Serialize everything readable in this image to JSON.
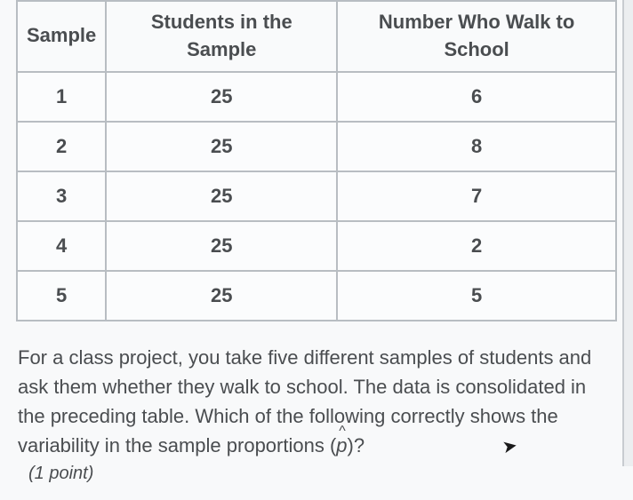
{
  "table": {
    "columns": [
      "Sample",
      "Students in the Sample",
      "Number Who Walk to School"
    ],
    "rows": [
      [
        "1",
        "25",
        "6"
      ],
      [
        "2",
        "25",
        "8"
      ],
      [
        "3",
        "25",
        "7"
      ],
      [
        "4",
        "25",
        "2"
      ],
      [
        "5",
        "25",
        "5"
      ]
    ],
    "border_color": "#b8bdc2",
    "header_bg": "#f9fafb",
    "cell_bg": "#fbfcfd",
    "text_color": "#4a4d50",
    "font_size": 22
  },
  "question": {
    "text_pre": "For a class project, you take five different samples of students and ask them whether they walk to school. The data is consolidated in the preceding table. Which of the following correctly shows the variability in the sample proportions ",
    "symbol": "p",
    "text_post": "?",
    "points": "(1 point)"
  },
  "colors": {
    "background": "#f5f6f7",
    "text": "#4a4d50"
  }
}
